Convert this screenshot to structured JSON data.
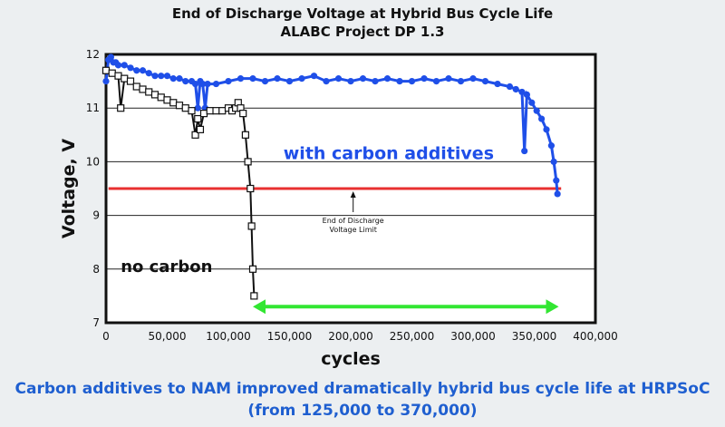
{
  "chart_data": {
    "type": "line",
    "title": "End of Discharge Voltage at Hybrid Bus Cycle Life",
    "subtitle": "ALABC Project DP 1.3",
    "xlabel": "cycles",
    "ylabel": "Voltage, V",
    "xlim": [
      0,
      400000
    ],
    "ylim": [
      7,
      12
    ],
    "xticks": [
      "0",
      "50,000",
      "100,000",
      "150,000",
      "200,000",
      "250,000",
      "300,000",
      "350,000",
      "400,000"
    ],
    "yticks": [
      "7",
      "8",
      "9",
      "10",
      "11",
      "12"
    ],
    "grid": "horizontal",
    "limit_line": {
      "y": 9.5,
      "label_line1": "End of Discharge",
      "label_line2": "Voltage Limit",
      "color": "#e83030"
    },
    "span_arrow": {
      "from": 120000,
      "to": 370000,
      "y": 7.3,
      "color": "#32e632"
    },
    "series": [
      {
        "name": "with carbon additives",
        "color": "#1f4fe8",
        "marker": "circle",
        "points": [
          [
            0,
            11.5
          ],
          [
            2000,
            11.9
          ],
          [
            4000,
            11.95
          ],
          [
            6000,
            11.85
          ],
          [
            8000,
            11.85
          ],
          [
            10000,
            11.8
          ],
          [
            15000,
            11.8
          ],
          [
            20000,
            11.75
          ],
          [
            25000,
            11.7
          ],
          [
            30000,
            11.7
          ],
          [
            35000,
            11.65
          ],
          [
            40000,
            11.6
          ],
          [
            45000,
            11.6
          ],
          [
            50000,
            11.6
          ],
          [
            55000,
            11.55
          ],
          [
            60000,
            11.55
          ],
          [
            65000,
            11.5
          ],
          [
            70000,
            11.5
          ],
          [
            73000,
            11.45
          ],
          [
            75000,
            11.0
          ],
          [
            77000,
            11.5
          ],
          [
            79000,
            11.45
          ],
          [
            81000,
            11.0
          ],
          [
            83000,
            11.45
          ],
          [
            90000,
            11.45
          ],
          [
            100000,
            11.5
          ],
          [
            110000,
            11.55
          ],
          [
            120000,
            11.55
          ],
          [
            130000,
            11.5
          ],
          [
            140000,
            11.55
          ],
          [
            150000,
            11.5
          ],
          [
            160000,
            11.55
          ],
          [
            170000,
            11.6
          ],
          [
            180000,
            11.5
          ],
          [
            190000,
            11.55
          ],
          [
            200000,
            11.5
          ],
          [
            210000,
            11.55
          ],
          [
            220000,
            11.5
          ],
          [
            230000,
            11.55
          ],
          [
            240000,
            11.5
          ],
          [
            250000,
            11.5
          ],
          [
            260000,
            11.55
          ],
          [
            270000,
            11.5
          ],
          [
            280000,
            11.55
          ],
          [
            290000,
            11.5
          ],
          [
            300000,
            11.55
          ],
          [
            310000,
            11.5
          ],
          [
            320000,
            11.45
          ],
          [
            330000,
            11.4
          ],
          [
            335000,
            11.35
          ],
          [
            340000,
            11.3
          ],
          [
            342000,
            10.2
          ],
          [
            344000,
            11.25
          ],
          [
            348000,
            11.1
          ],
          [
            352000,
            10.95
          ],
          [
            356000,
            10.8
          ],
          [
            360000,
            10.6
          ],
          [
            364000,
            10.3
          ],
          [
            366000,
            10.0
          ],
          [
            368000,
            9.65
          ],
          [
            369000,
            9.4
          ]
        ]
      },
      {
        "name": "no carbon",
        "color": "#111111",
        "marker": "square",
        "points": [
          [
            0,
            11.7
          ],
          [
            5000,
            11.65
          ],
          [
            10000,
            11.6
          ],
          [
            12000,
            11.0
          ],
          [
            15000,
            11.55
          ],
          [
            20000,
            11.5
          ],
          [
            25000,
            11.4
          ],
          [
            30000,
            11.35
          ],
          [
            35000,
            11.3
          ],
          [
            40000,
            11.25
          ],
          [
            45000,
            11.2
          ],
          [
            50000,
            11.15
          ],
          [
            55000,
            11.1
          ],
          [
            60000,
            11.05
          ],
          [
            65000,
            11.0
          ],
          [
            70000,
            10.95
          ],
          [
            73000,
            10.5
          ],
          [
            75000,
            10.8
          ],
          [
            77000,
            10.6
          ],
          [
            80000,
            10.9
          ],
          [
            85000,
            10.95
          ],
          [
            90000,
            10.95
          ],
          [
            95000,
            10.95
          ],
          [
            100000,
            11.0
          ],
          [
            103000,
            10.95
          ],
          [
            106000,
            11.0
          ],
          [
            108000,
            11.1
          ],
          [
            110000,
            11.0
          ],
          [
            112000,
            10.9
          ],
          [
            114000,
            10.5
          ],
          [
            116000,
            10.0
          ],
          [
            118000,
            9.5
          ],
          [
            119000,
            8.8
          ],
          [
            120000,
            8.0
          ],
          [
            121000,
            7.5
          ]
        ]
      }
    ]
  },
  "annotations": {
    "carbon_label": "with carbon additives",
    "nocarbon_label": "no carbon"
  },
  "caption": {
    "line1": "Carbon additives to NAM improved dramatically hybrid bus cycle life at HRPSoC",
    "line2": "(from 125,000 to 370,000)"
  }
}
